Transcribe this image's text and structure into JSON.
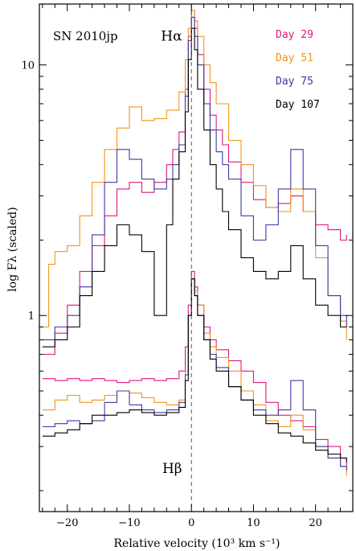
{
  "chart_data": {
    "type": "line",
    "title": "SN 2010jp",
    "xlabel": "Relative velocity (10³ km s⁻¹)",
    "ylabel": "log Fλ (scaled)",
    "xlim": [
      -24.5,
      26
    ],
    "ylim": [
      0.165,
      17.5
    ],
    "y_scale": "log",
    "x_ticks": [
      -20,
      -10,
      0,
      10,
      20
    ],
    "y_ticks": [
      1,
      10
    ],
    "y_tick_labels": [
      "1",
      "10"
    ],
    "reference_line_x": 0,
    "line_labels": [
      {
        "text": "Hα",
        "x": -1.5,
        "y": 12.5
      },
      {
        "text": "Hβ",
        "x": -1.5,
        "y": 0.235
      }
    ],
    "legend_position": "top-right",
    "series": [
      {
        "name": "Day 29",
        "color": "#e0177d",
        "halpha": {
          "x": [
            -24,
            -22,
            -20,
            -18,
            -16,
            -14,
            -12,
            -10,
            -8,
            -6,
            -4,
            -3,
            -2,
            -1,
            -0.5,
            0,
            0.5,
            1,
            2,
            3,
            4,
            5,
            6,
            8,
            10,
            12,
            14,
            16,
            18,
            20,
            22,
            24,
            25
          ],
          "y": [
            0.7,
            0.85,
            1.1,
            1.5,
            1.9,
            2.5,
            3.2,
            3.4,
            3.1,
            3.4,
            4.0,
            4.6,
            5.4,
            8.0,
            13.0,
            16.5,
            14.0,
            11.0,
            8.0,
            6.3,
            5.5,
            4.8,
            4.1,
            3.4,
            2.9,
            2.7,
            2.8,
            3.0,
            2.6,
            2.3,
            2.2,
            2.0,
            2.1
          ]
        },
        "hbeta": {
          "x": [
            -24,
            -22,
            -20,
            -18,
            -16,
            -14,
            -12,
            -10,
            -8,
            -6,
            -4,
            -2,
            -1,
            -0.5,
            0,
            0.5,
            1,
            2,
            3,
            4,
            6,
            8,
            10,
            12,
            14,
            16,
            18,
            20,
            22,
            24,
            25
          ],
          "y": [
            0.56,
            0.55,
            0.56,
            0.55,
            0.56,
            0.55,
            0.54,
            0.55,
            0.56,
            0.55,
            0.56,
            0.6,
            0.75,
            1.1,
            1.5,
            1.3,
            1.1,
            0.9,
            0.8,
            0.73,
            0.66,
            0.6,
            0.54,
            0.45,
            0.4,
            0.38,
            0.36,
            0.32,
            0.3,
            0.27,
            0.25
          ]
        }
      },
      {
        "name": "Day 51",
        "color": "#f29418",
        "halpha": {
          "x": [
            -24,
            -23,
            -22,
            -20,
            -18,
            -16,
            -14,
            -12,
            -10,
            -8,
            -6,
            -4,
            -2,
            -1,
            -0.5,
            0,
            0.5,
            1,
            2,
            3,
            4,
            6,
            8,
            10,
            12,
            14,
            16,
            18,
            20,
            22,
            24,
            25
          ],
          "y": [
            0.9,
            1.6,
            1.8,
            1.9,
            2.5,
            3.4,
            4.6,
            5.6,
            6.8,
            6.0,
            6.1,
            6.6,
            7.8,
            10.5,
            14.0,
            16.5,
            15.0,
            13.0,
            10.0,
            8.5,
            7.0,
            5.0,
            4.0,
            3.3,
            2.7,
            2.6,
            3.2,
            2.6,
            1.7,
            1.2,
            0.95,
            0.8
          ]
        },
        "hbeta": {
          "x": [
            -24,
            -22,
            -20,
            -18,
            -16,
            -14,
            -12,
            -10,
            -8,
            -6,
            -4,
            -2,
            -1,
            -0.5,
            0,
            0.5,
            1,
            2,
            3,
            4,
            6,
            8,
            10,
            12,
            14,
            16,
            18,
            20,
            22,
            24,
            25
          ],
          "y": [
            0.42,
            0.46,
            0.48,
            0.45,
            0.46,
            0.48,
            0.5,
            0.49,
            0.47,
            0.45,
            0.44,
            0.46,
            0.6,
            1.0,
            1.4,
            1.25,
            1.1,
            0.85,
            0.75,
            0.68,
            0.6,
            0.5,
            0.44,
            0.38,
            0.36,
            0.4,
            0.35,
            0.3,
            0.27,
            0.25,
            0.23
          ]
        }
      },
      {
        "name": "Day 75",
        "color": "#3c3aa3",
        "halpha": {
          "x": [
            -24,
            -22,
            -20,
            -18,
            -16,
            -14,
            -12,
            -10,
            -8,
            -6,
            -4,
            -3,
            -2,
            -1,
            -0.5,
            0,
            0.5,
            1,
            2,
            3,
            4,
            5,
            6,
            8,
            10,
            12,
            14,
            16,
            18,
            20,
            22,
            24,
            25
          ],
          "y": [
            0.8,
            0.9,
            1.0,
            1.3,
            2.1,
            3.4,
            4.6,
            4.2,
            3.5,
            3.2,
            3.5,
            4.0,
            4.8,
            7.5,
            12.5,
            15.5,
            13.0,
            10.0,
            7.0,
            5.5,
            4.5,
            4.0,
            3.5,
            2.5,
            2.0,
            2.3,
            3.2,
            4.6,
            3.2,
            1.9,
            1.2,
            1.0,
            0.9
          ]
        },
        "hbeta": {
          "x": [
            -24,
            -22,
            -20,
            -18,
            -16,
            -14,
            -12,
            -10,
            -8,
            -6,
            -4,
            -2,
            -1,
            -0.5,
            0,
            0.5,
            1,
            2,
            3,
            4,
            6,
            8,
            10,
            12,
            14,
            16,
            18,
            20,
            22,
            24,
            25
          ],
          "y": [
            0.36,
            0.37,
            0.38,
            0.37,
            0.38,
            0.45,
            0.5,
            0.44,
            0.42,
            0.41,
            0.42,
            0.45,
            0.58,
            1.0,
            1.4,
            1.2,
            1.0,
            0.8,
            0.7,
            0.62,
            0.52,
            0.46,
            0.42,
            0.4,
            0.42,
            0.55,
            0.42,
            0.3,
            0.27,
            0.25,
            0.24
          ]
        }
      },
      {
        "name": "Day 107",
        "color": "#000000",
        "halpha": {
          "x": [
            -24,
            -22,
            -20,
            -18,
            -16,
            -14,
            -12,
            -10,
            -8,
            -6,
            -4,
            -3,
            -2,
            -1,
            -0.5,
            0,
            0.5,
            1,
            2,
            3,
            4,
            5,
            6,
            8,
            10,
            12,
            14,
            16,
            18,
            20,
            22,
            24,
            25
          ],
          "y": [
            0.75,
            0.8,
            0.9,
            1.2,
            1.5,
            1.9,
            2.3,
            2.1,
            1.8,
            1.0,
            2.3,
            3.5,
            4.5,
            6.5,
            10.5,
            14.0,
            11.5,
            8.0,
            5.5,
            4.0,
            3.2,
            2.6,
            2.2,
            1.7,
            1.5,
            1.4,
            1.5,
            1.9,
            1.4,
            1.1,
            1.0,
            0.9,
            0.9
          ]
        },
        "hbeta": {
          "x": [
            -24,
            -22,
            -20,
            -18,
            -16,
            -14,
            -12,
            -10,
            -8,
            -6,
            -4,
            -2,
            -1,
            -0.5,
            0,
            0.5,
            1,
            2,
            3,
            4,
            6,
            8,
            10,
            12,
            14,
            16,
            18,
            20,
            22,
            24,
            25
          ],
          "y": [
            0.33,
            0.34,
            0.35,
            0.37,
            0.4,
            0.4,
            0.41,
            0.42,
            0.41,
            0.4,
            0.41,
            0.43,
            0.55,
            1.0,
            1.4,
            1.2,
            1.0,
            0.8,
            0.67,
            0.6,
            0.52,
            0.46,
            0.4,
            0.37,
            0.34,
            0.33,
            0.31,
            0.29,
            0.28,
            0.27,
            0.26
          ]
        }
      }
    ]
  }
}
